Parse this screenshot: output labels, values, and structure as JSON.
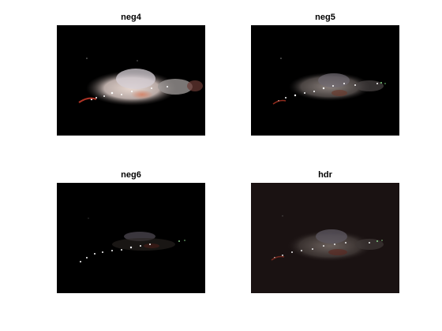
{
  "figure": {
    "panels": [
      {
        "title": "neg4",
        "background": "#000000",
        "exposure": "bright"
      },
      {
        "title": "neg5",
        "background": "#000000",
        "exposure": "medium"
      },
      {
        "title": "neg6",
        "background": "#000000",
        "exposure": "dark"
      },
      {
        "title": "hdr",
        "background": "#1a1212",
        "exposure": "hdr"
      }
    ],
    "colors": {
      "figure_background": "#ffffff",
      "title_text": "#000000"
    }
  }
}
